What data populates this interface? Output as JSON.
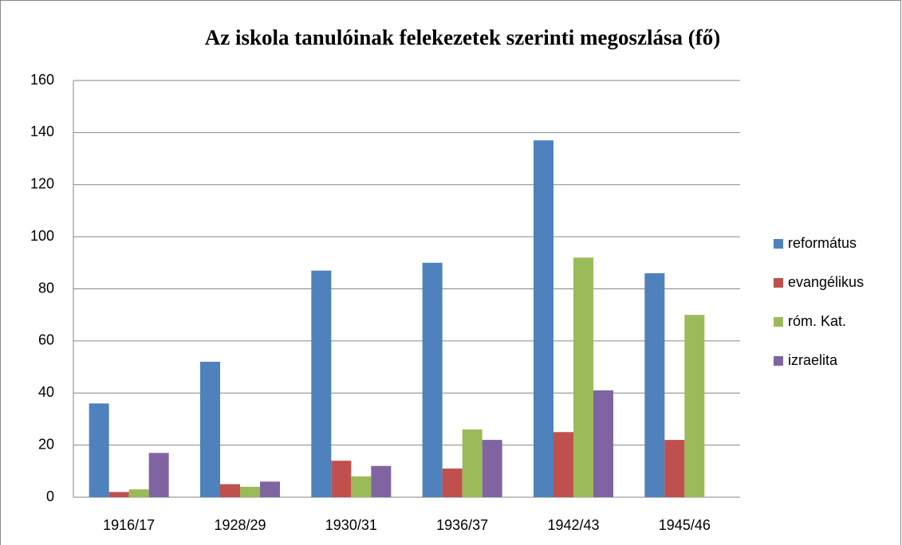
{
  "chart_data": {
    "type": "bar",
    "title": "Az iskola tanulóinak felekezetek szerinti megoszlása (fő)",
    "categories": [
      "1916/17",
      "1928/29",
      "1930/31",
      "1936/37",
      "1942/43",
      "1945/46"
    ],
    "series": [
      {
        "name": "református",
        "color": "#4f81bd",
        "values": [
          36,
          52,
          87,
          90,
          137,
          86
        ]
      },
      {
        "name": "evangélikus",
        "color": "#c0504d",
        "values": [
          2,
          5,
          14,
          11,
          25,
          22
        ]
      },
      {
        "name": "róm. Kat.",
        "color": "#9bbb59",
        "values": [
          3,
          4,
          8,
          26,
          92,
          70
        ]
      },
      {
        "name": "izraelita",
        "color": "#8064a2",
        "values": [
          17,
          6,
          12,
          22,
          41,
          null
        ]
      }
    ],
    "ylim": [
      0,
      160
    ],
    "yticks": [
      0,
      20,
      40,
      60,
      80,
      100,
      120,
      140,
      160
    ],
    "grid": true,
    "legend": "right"
  }
}
